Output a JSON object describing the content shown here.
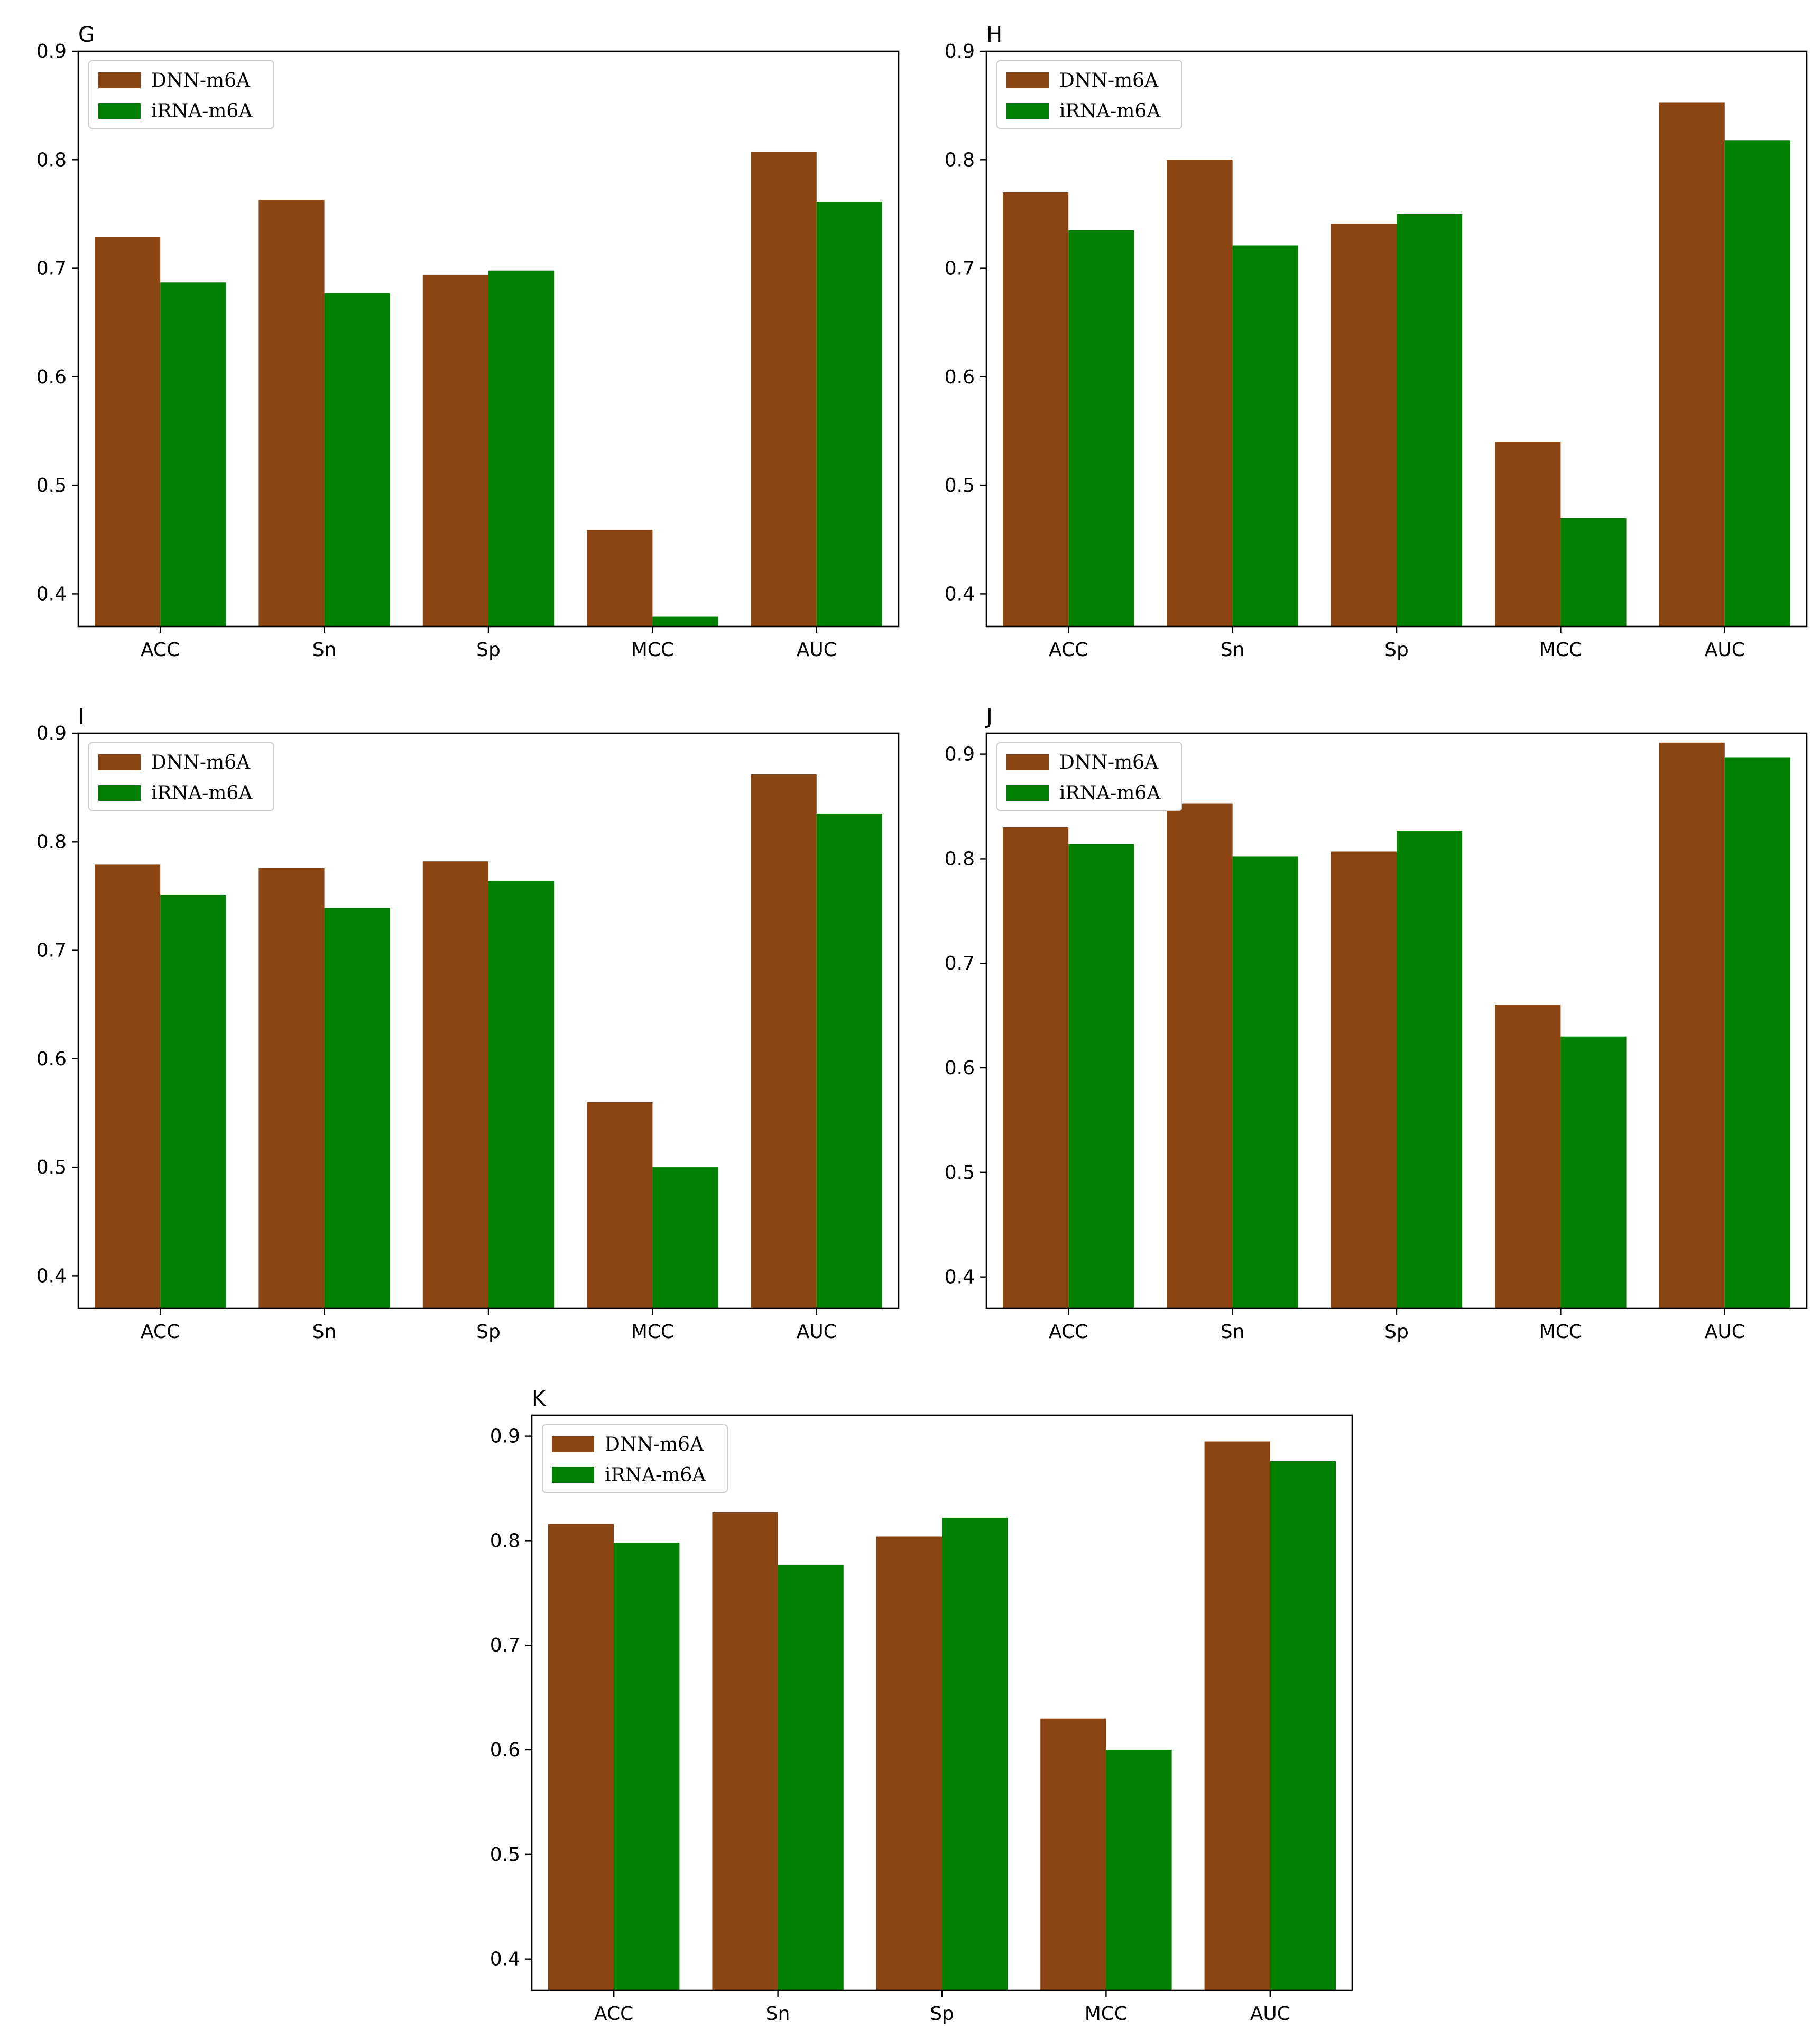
{
  "legend": {
    "series_a": "DNN-m6A",
    "series_b": "iRNA-m6A"
  },
  "colors": {
    "series_a": "#8B4513",
    "series_b": "#008000"
  },
  "chart_data": [
    {
      "panel": "G",
      "type": "bar",
      "categories": [
        "ACC",
        "Sn",
        "Sp",
        "MCC",
        "AUC"
      ],
      "series": [
        {
          "name": "DNN-m6A",
          "values": [
            0.729,
            0.763,
            0.694,
            0.459,
            0.807
          ]
        },
        {
          "name": "iRNA-m6A",
          "values": [
            0.687,
            0.677,
            0.698,
            0.379,
            0.761
          ]
        }
      ],
      "ylim": [
        0.37,
        0.9
      ],
      "yticks": [
        0.4,
        0.5,
        0.6,
        0.7,
        0.8,
        0.9
      ],
      "ytick_labels": [
        "0.4",
        "0.5",
        "0.6",
        "0.7",
        "0.8",
        "0.9"
      ],
      "legend_position": "upper-left"
    },
    {
      "panel": "H",
      "type": "bar",
      "categories": [
        "ACC",
        "Sn",
        "Sp",
        "MCC",
        "AUC"
      ],
      "series": [
        {
          "name": "DNN-m6A",
          "values": [
            0.77,
            0.8,
            0.741,
            0.54,
            0.853
          ]
        },
        {
          "name": "iRNA-m6A",
          "values": [
            0.735,
            0.721,
            0.75,
            0.47,
            0.818
          ]
        }
      ],
      "ylim": [
        0.37,
        0.9
      ],
      "yticks": [
        0.4,
        0.5,
        0.6,
        0.7,
        0.8,
        0.9
      ],
      "ytick_labels": [
        "0.4",
        "0.5",
        "0.6",
        "0.7",
        "0.8",
        "0.9"
      ],
      "legend_position": "upper-left"
    },
    {
      "panel": "I",
      "type": "bar",
      "categories": [
        "ACC",
        "Sn",
        "Sp",
        "MCC",
        "AUC"
      ],
      "series": [
        {
          "name": "DNN-m6A",
          "values": [
            0.779,
            0.776,
            0.782,
            0.56,
            0.862
          ]
        },
        {
          "name": "iRNA-m6A",
          "values": [
            0.751,
            0.739,
            0.764,
            0.5,
            0.826
          ]
        }
      ],
      "ylim": [
        0.37,
        0.9
      ],
      "yticks": [
        0.4,
        0.5,
        0.6,
        0.7,
        0.8,
        0.9
      ],
      "ytick_labels": [
        "0.4",
        "0.5",
        "0.6",
        "0.7",
        "0.8",
        "0.9"
      ],
      "legend_position": "upper-left"
    },
    {
      "panel": "J",
      "type": "bar",
      "categories": [
        "ACC",
        "Sn",
        "Sp",
        "MCC",
        "AUC"
      ],
      "series": [
        {
          "name": "DNN-m6A",
          "values": [
            0.83,
            0.853,
            0.807,
            0.66,
            0.911
          ]
        },
        {
          "name": "iRNA-m6A",
          "values": [
            0.814,
            0.802,
            0.827,
            0.63,
            0.897
          ]
        }
      ],
      "ylim": [
        0.37,
        0.92
      ],
      "yticks": [
        0.4,
        0.5,
        0.6,
        0.7,
        0.8,
        0.9
      ],
      "ytick_labels": [
        "0.4",
        "0.5",
        "0.6",
        "0.7",
        "0.8",
        "0.9"
      ],
      "legend_position": "upper-left"
    },
    {
      "panel": "K",
      "type": "bar",
      "categories": [
        "ACC",
        "Sn",
        "Sp",
        "MCC",
        "AUC"
      ],
      "series": [
        {
          "name": "DNN-m6A",
          "values": [
            0.816,
            0.827,
            0.804,
            0.63,
            0.895
          ]
        },
        {
          "name": "iRNA-m6A",
          "values": [
            0.798,
            0.777,
            0.822,
            0.6,
            0.876
          ]
        }
      ],
      "ylim": [
        0.37,
        0.92
      ],
      "yticks": [
        0.4,
        0.5,
        0.6,
        0.7,
        0.8,
        0.9
      ],
      "ytick_labels": [
        "0.4",
        "0.5",
        "0.6",
        "0.7",
        "0.8",
        "0.9"
      ],
      "legend_position": "upper-left"
    }
  ]
}
